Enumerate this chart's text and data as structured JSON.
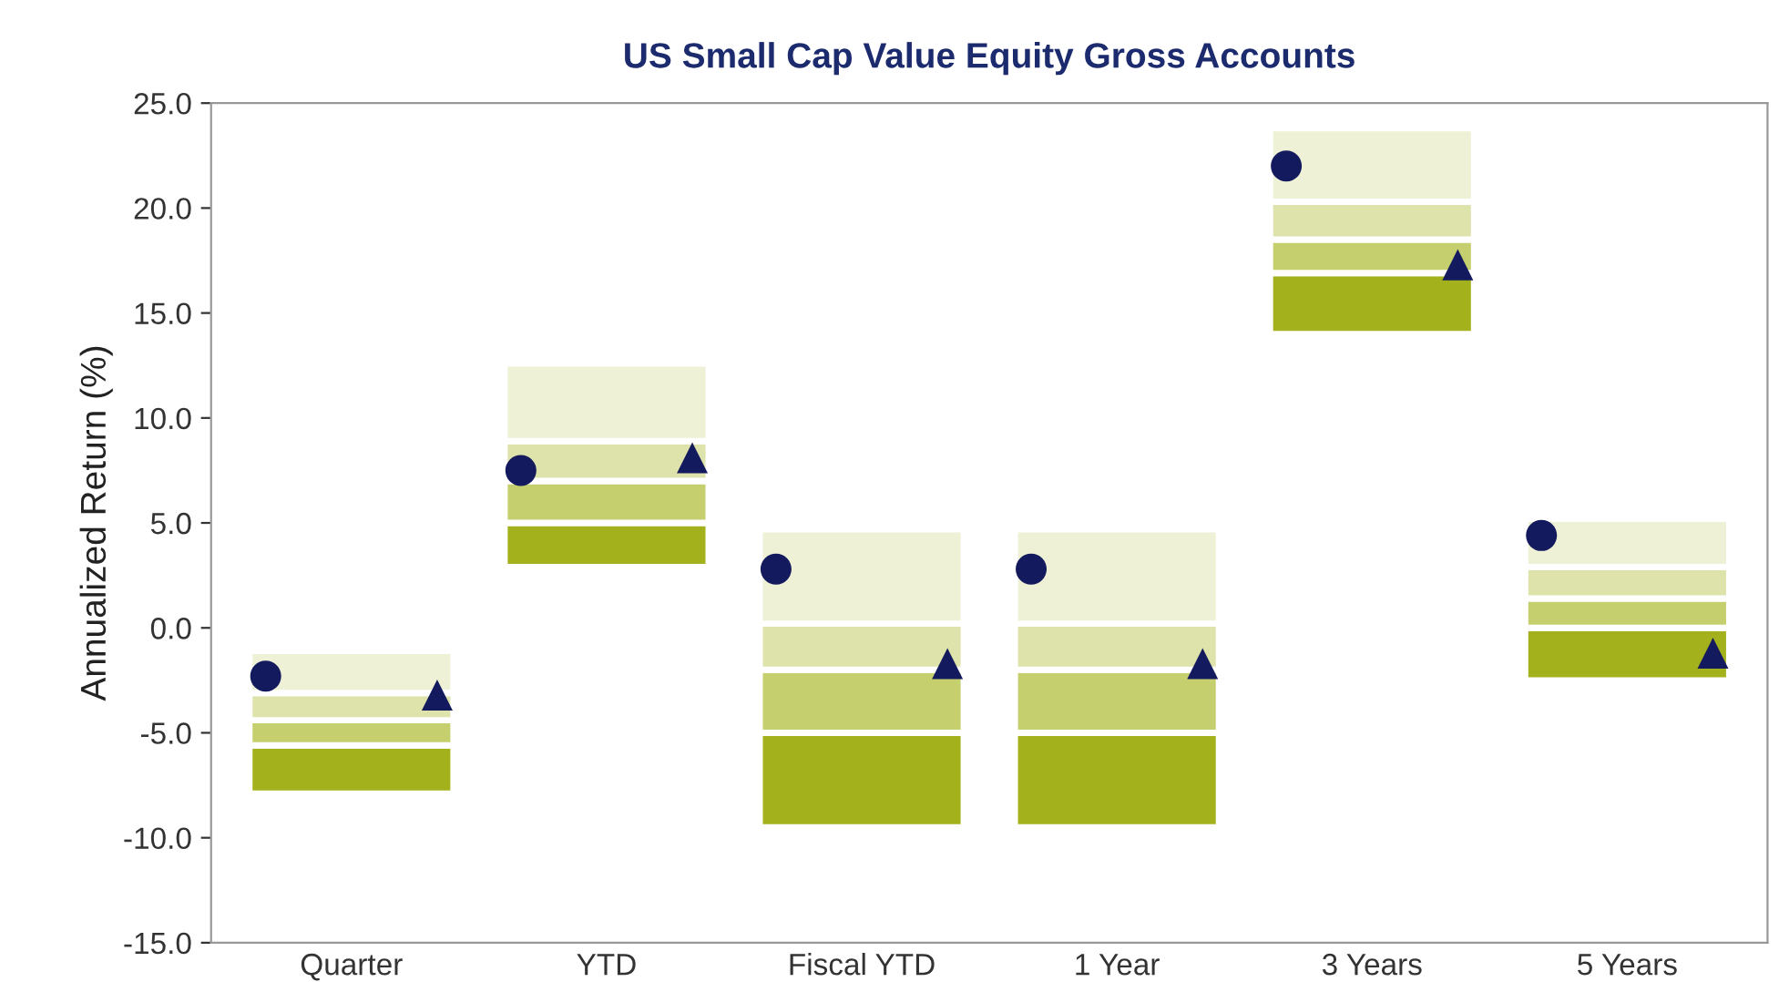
{
  "chart_data": {
    "type": "bar",
    "title": "US Small Cap Value Equity Gross Accounts",
    "ylabel": "Annualized Return (%)",
    "categories": [
      "Quarter",
      "YTD",
      "Fiscal YTD",
      "1 Year",
      "3 Years",
      "5 Years"
    ],
    "series": [
      {
        "color": "#a3b21c",
        "base": [
          -7.9,
          2.9,
          -9.5,
          -9.5,
          14.0,
          -2.5
        ],
        "values": [
          2.3,
          2.1,
          4.5,
          4.5,
          2.9,
          2.5
        ]
      },
      {
        "color": "#c6cf6e",
        "base": [
          -5.6,
          5.0,
          -5.0,
          -5.0,
          16.9,
          0.0
        ],
        "values": [
          1.2,
          2.0,
          3.0,
          3.0,
          1.6,
          1.4
        ]
      },
      {
        "color": "#dde3aa",
        "base": [
          -4.4,
          7.0,
          -2.0,
          -2.0,
          18.5,
          1.4
        ],
        "values": [
          1.3,
          1.9,
          2.2,
          2.2,
          1.8,
          1.5
        ]
      },
      {
        "color": "#eef1d6",
        "base": [
          -3.1,
          8.9,
          0.2,
          0.2,
          20.3,
          2.9
        ],
        "values": [
          2.0,
          3.7,
          4.5,
          4.5,
          3.5,
          2.3
        ]
      },
      {
        "type": "scatter",
        "marker": "circle",
        "color": "#141a5e",
        "x": [
          "Quarter",
          "YTD",
          "Fiscal YTD",
          "1 Year",
          "3 Years",
          "5 Years"
        ],
        "values": [
          -2.3,
          7.5,
          2.8,
          2.8,
          22.0,
          4.4
        ]
      },
      {
        "type": "scatter",
        "marker": "triangle",
        "color": "#141a5e",
        "x": [
          "Quarter",
          "YTD",
          "Fiscal YTD",
          "1 Year",
          "3 Years",
          "5 Years"
        ],
        "values": [
          -3.2,
          8.1,
          -1.7,
          -1.7,
          17.3,
          -1.2
        ]
      }
    ],
    "ylim": [
      -15,
      25
    ],
    "yticks": [
      {
        "value": -15,
        "label": "-15.0"
      },
      {
        "value": -10,
        "label": "-10.0"
      },
      {
        "value": -5,
        "label": "-5.0"
      },
      {
        "value": 0,
        "label": "0.0"
      },
      {
        "value": 5,
        "label": "5.0"
      },
      {
        "value": 10,
        "label": "10.0"
      },
      {
        "value": 15,
        "label": "15.0"
      },
      {
        "value": 20,
        "label": "20.0"
      },
      {
        "value": 25,
        "label": "25.0"
      }
    ],
    "grid": false,
    "legend": false
  }
}
